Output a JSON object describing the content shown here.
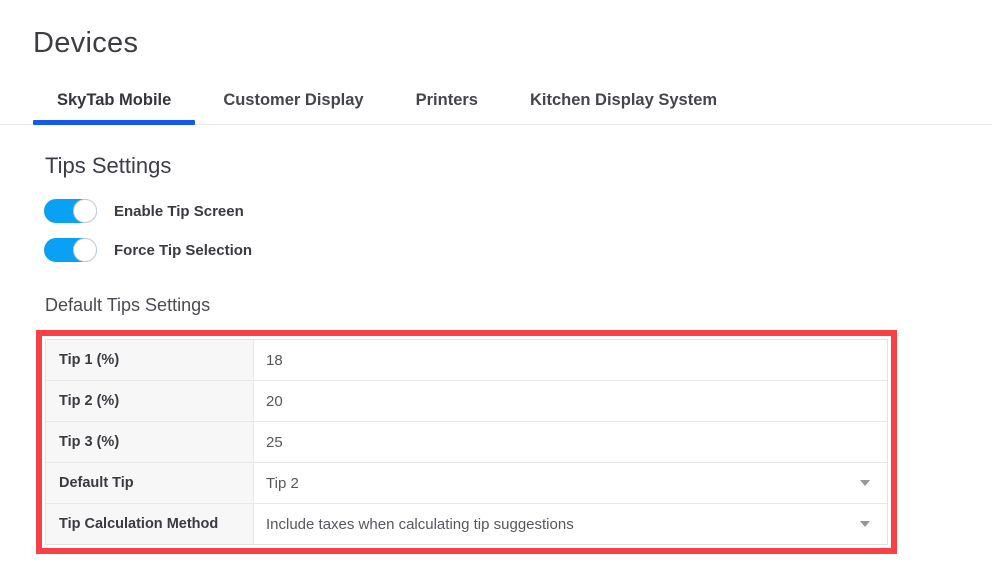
{
  "page": {
    "title": "Devices"
  },
  "tabs": [
    {
      "label": "SkyTab Mobile",
      "active": true
    },
    {
      "label": "Customer Display",
      "active": false
    },
    {
      "label": "Printers",
      "active": false
    },
    {
      "label": "Kitchen Display System",
      "active": false
    }
  ],
  "tips_settings": {
    "heading": "Tips Settings",
    "toggles": [
      {
        "label": "Enable Tip Screen",
        "state": "on"
      },
      {
        "label": "Force Tip Selection",
        "state": "on"
      }
    ]
  },
  "default_tips": {
    "heading": "Default Tips Settings",
    "rows": [
      {
        "label": "Tip 1 (%)",
        "value": "18",
        "type": "text"
      },
      {
        "label": "Tip 2 (%)",
        "value": "20",
        "type": "text"
      },
      {
        "label": "Tip 3 (%)",
        "value": "25",
        "type": "text"
      },
      {
        "label": "Default Tip",
        "value": "Tip 2",
        "type": "select"
      },
      {
        "label": "Tip Calculation Method",
        "value": "Include taxes when calculating tip suggestions",
        "type": "select"
      }
    ]
  },
  "colors": {
    "accent_blue": "#1659e8",
    "toggle_blue": "#0aa0f3",
    "highlight_red": "#f94046"
  }
}
